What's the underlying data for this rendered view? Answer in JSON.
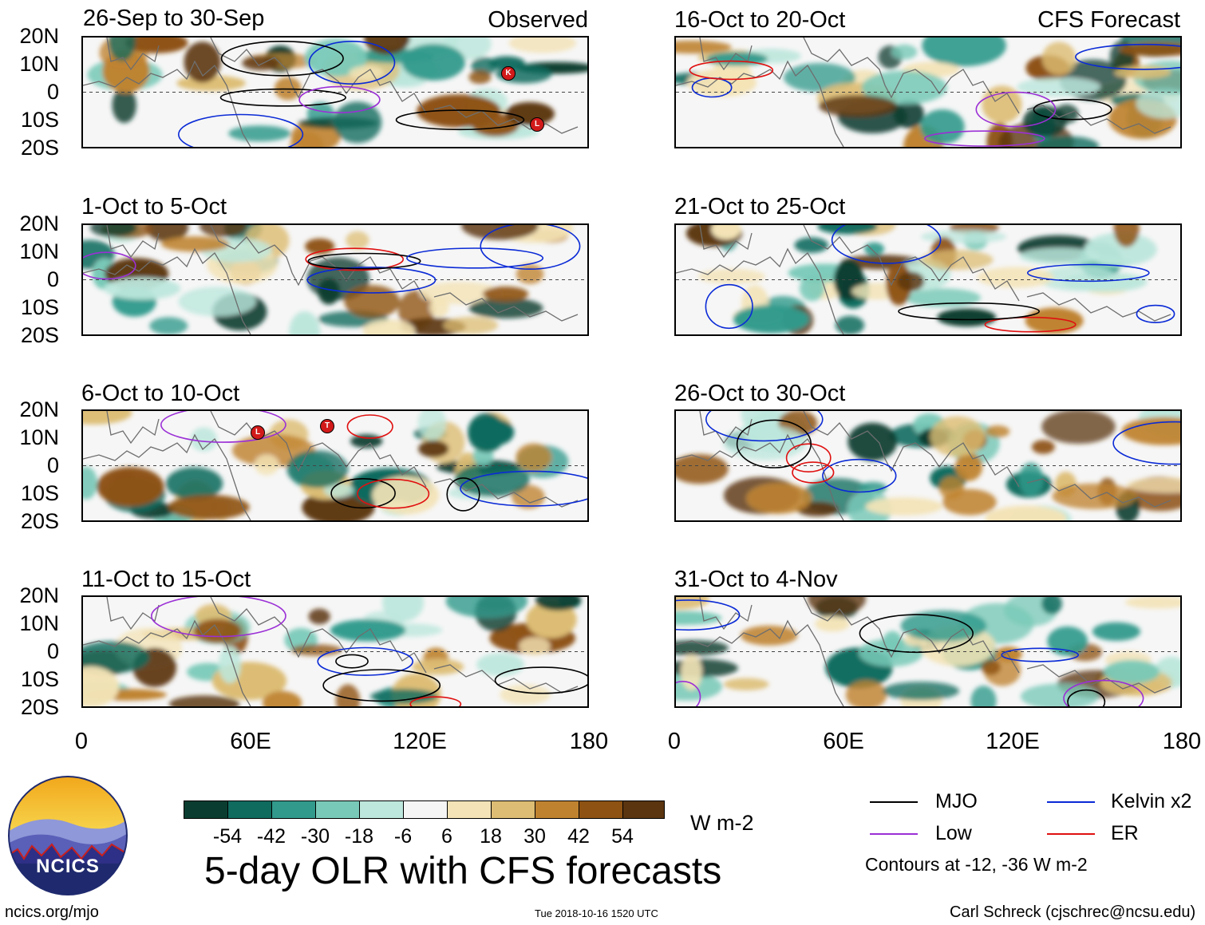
{
  "observed_label": "Observed",
  "forecast_label": "CFS Forecast",
  "panels_left": [
    {
      "title": "26-Sep to 30-Sep"
    },
    {
      "title": "1-Oct to 5-Oct"
    },
    {
      "title": "6-Oct to 10-Oct"
    },
    {
      "title": "11-Oct to 15-Oct"
    }
  ],
  "panels_right": [
    {
      "title": "16-Oct to 20-Oct"
    },
    {
      "title": "21-Oct to 25-Oct"
    },
    {
      "title": "26-Oct to 30-Oct"
    },
    {
      "title": "31-Oct to 4-Nov"
    }
  ],
  "lat_labels": [
    "20N",
    "10N",
    "0",
    "10S",
    "20S"
  ],
  "lon_labels": [
    "0",
    "60E",
    "120E",
    "180"
  ],
  "storm_markers": [
    "K",
    "L",
    "L",
    "T"
  ],
  "colorbar": {
    "colors": [
      "#0a3d30",
      "#0f6b5e",
      "#319a8c",
      "#79c9b8",
      "#bde7dc",
      "#f5f5f5",
      "#f3e3b6",
      "#ddbd74",
      "#bf8330",
      "#8e5213",
      "#5b3510"
    ],
    "labels": [
      "-54",
      "-42",
      "-30",
      "-18",
      "-6",
      "6",
      "18",
      "30",
      "42",
      "54"
    ],
    "units": "W m-2"
  },
  "main_title": "5-day OLR with CFS forecasts",
  "legend": {
    "mjo": {
      "label": "MJO",
      "color": "#000000"
    },
    "kelvin": {
      "label": "Kelvin x2",
      "color": "#0a2ad6"
    },
    "low": {
      "label": "Low",
      "color": "#9b2fd6"
    },
    "er": {
      "label": "ER",
      "color": "#e01010"
    },
    "note": "Contours at -12, -36 W m-2"
  },
  "logo_text": "NCICS",
  "footer": {
    "url": "ncics.org/mjo",
    "timestamp": "Tue 2018-10-16 1520 UTC",
    "credit": "Carl Schreck (cjschrec@ncsu.edu)"
  }
}
